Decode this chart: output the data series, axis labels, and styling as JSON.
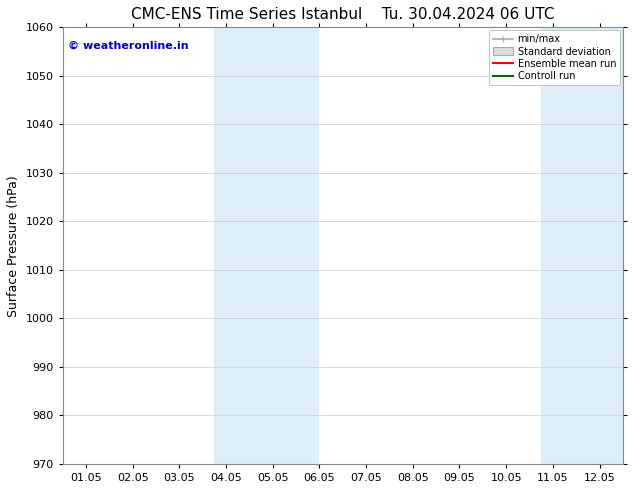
{
  "title_left": "CMC-ENS Time Series Istanbul",
  "title_right": "Tu. 30.04.2024 06 UTC",
  "ylabel": "Surface Pressure (hPa)",
  "ylim": [
    970,
    1060
  ],
  "yticks": [
    970,
    980,
    990,
    1000,
    1010,
    1020,
    1030,
    1040,
    1050,
    1060
  ],
  "xtick_labels": [
    "01.05",
    "02.05",
    "03.05",
    "04.05",
    "05.05",
    "06.05",
    "07.05",
    "08.05",
    "09.05",
    "10.05",
    "11.05",
    "12.05"
  ],
  "xtick_positions": [
    1,
    2,
    3,
    4,
    5,
    6,
    7,
    8,
    9,
    10,
    11,
    12
  ],
  "xlim": [
    0.5,
    12.5
  ],
  "shaded_regions": [
    {
      "xstart": 3.5,
      "xend": 4.5
    },
    {
      "xstart": 4.5,
      "xend": 6.0
    },
    {
      "xstart": 10.5,
      "xend": 11.5
    },
    {
      "xstart": 11.5,
      "xend": 12.5
    }
  ],
  "shaded_color": "#ddeef8",
  "watermark": "© weatheronline.in",
  "watermark_color": "#0000cc",
  "legend_labels": [
    "min/max",
    "Standard deviation",
    "Ensemble mean run",
    "Controll run"
  ],
  "legend_colors": [
    "#aaaaaa",
    "#cccccc",
    "#ff0000",
    "#006400"
  ],
  "bg_color": "#ffffff",
  "grid_color": "#cccccc",
  "title_fontsize": 11,
  "label_fontsize": 9,
  "tick_fontsize": 8,
  "watermark_fontsize": 8
}
